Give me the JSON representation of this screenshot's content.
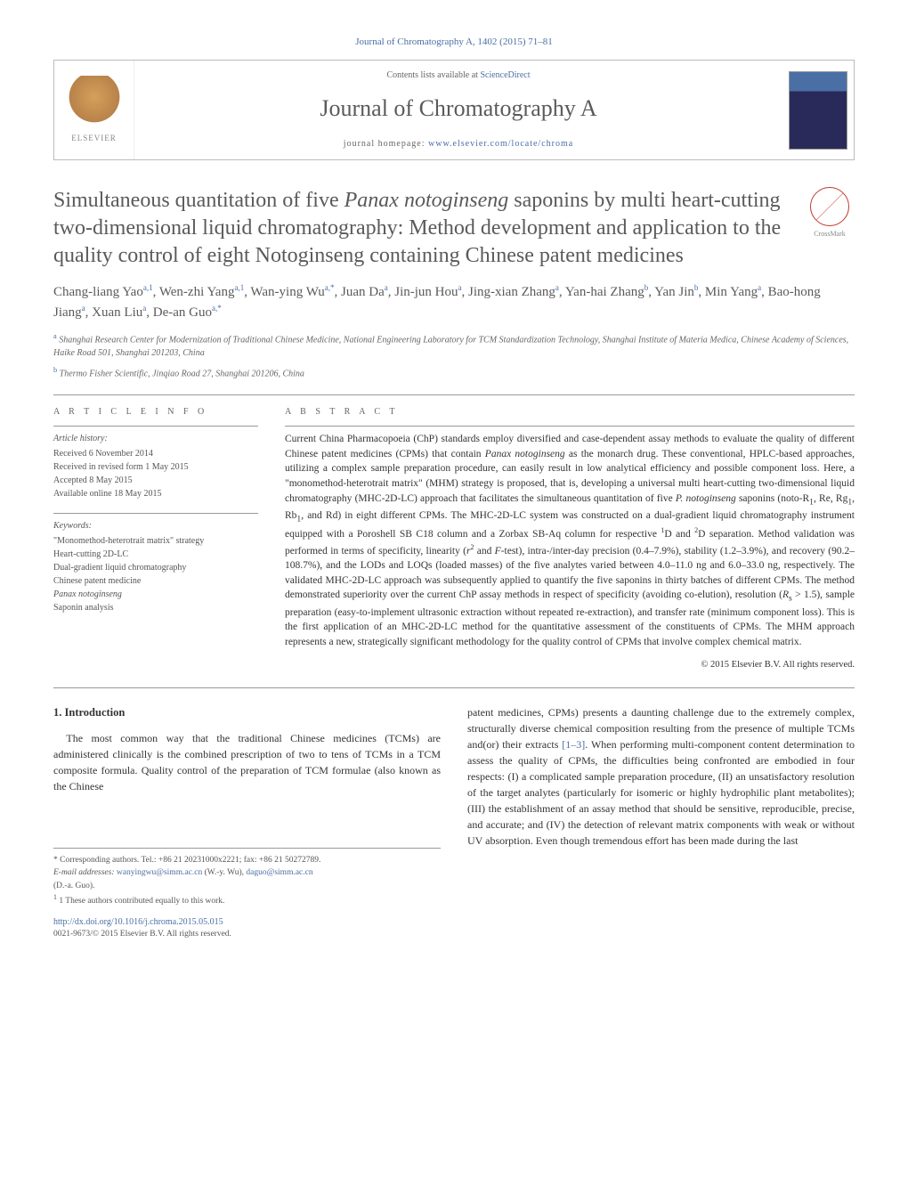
{
  "journal_ref": "Journal of Chromatography A, 1402 (2015) 71–81",
  "header": {
    "contents_prefix": "Contents lists available at ",
    "contents_link": "ScienceDirect",
    "journal_name": "Journal of Chromatography A",
    "homepage_prefix": "journal homepage: ",
    "homepage_link": "www.elsevier.com/locate/chroma",
    "publisher": "ELSEVIER"
  },
  "title_html": "Simultaneous quantitation of five <em>Panax notoginseng</em> saponins by multi heart-cutting two-dimensional liquid chromatography: Method development and application to the quality control of eight Notoginseng containing Chinese patent medicines",
  "crossmark": "CrossMark",
  "authors_html": "Chang-liang Yao<sup>a,1</sup>, Wen-zhi Yang<sup>a,1</sup>, Wan-ying Wu<sup>a,*</sup>, Juan Da<sup>a</sup>, Jin-jun Hou<sup>a</sup>, Jing-xian Zhang<sup>a</sup>, Yan-hai Zhang<sup>b</sup>, Yan Jin<sup>b</sup>, Min Yang<sup>a</sup>, Bao-hong Jiang<sup>a</sup>, Xuan Liu<sup>a</sup>, De-an Guo<sup>a,*</sup>",
  "affiliations": [
    {
      "marker": "a",
      "text": "Shanghai Research Center for Modernization of Traditional Chinese Medicine, National Engineering Laboratory for TCM Standardization Technology, Shanghai Institute of Materia Medica, Chinese Academy of Sciences, Haike Road 501, Shanghai 201203, China"
    },
    {
      "marker": "b",
      "text": "Thermo Fisher Scientific, Jinqiao Road 27, Shanghai 201206, China"
    }
  ],
  "article_info": {
    "heading": "a r t i c l e   i n f o",
    "history_label": "Article history:",
    "history": [
      "Received 6 November 2014",
      "Received in revised form 1 May 2015",
      "Accepted 8 May 2015",
      "Available online 18 May 2015"
    ],
    "keywords_label": "Keywords:",
    "keywords": [
      "\"Monomethod-heterotrait matrix\" strategy",
      "Heart-cutting 2D-LC",
      "Dual-gradient liquid chromatography",
      "Chinese patent medicine",
      "Panax notoginseng",
      "Saponin analysis"
    ]
  },
  "abstract": {
    "heading": "a b s t r a c t",
    "text_html": "Current China Pharmacopoeia (ChP) standards employ diversified and case-dependent assay methods to evaluate the quality of different Chinese patent medicines (CPMs) that contain <em>Panax notoginseng</em> as the monarch drug. These conventional, HPLC-based approaches, utilizing a complex sample preparation procedure, can easily result in low analytical efficiency and possible component loss. Here, a \"monomethod-heterotrait matrix\" (MHM) strategy is proposed, that is, developing a universal multi heart-cutting two-dimensional liquid chromatography (MHC-2D-LC) approach that facilitates the simultaneous quantitation of five <em>P. notoginseng</em> saponins (noto-R<sub>1</sub>, Re, Rg<sub>1</sub>, Rb<sub>1</sub>, and Rd) in eight different CPMs. The MHC-2D-LC system was constructed on a dual-gradient liquid chromatography instrument equipped with a Poroshell SB C18 column and a Zorbax SB-Aq column for respective <sup>1</sup>D and <sup>2</sup>D separation. Method validation was performed in terms of specificity, linearity (<em>r</em><sup>2</sup> and <em>F</em>-test), intra-/inter-day precision (0.4–7.9%), stability (1.2–3.9%), and recovery (90.2–108.7%), and the LODs and LOQs (loaded masses) of the five analytes varied between 4.0–11.0 ng and 6.0–33.0 ng, respectively. The validated MHC-2D-LC approach was subsequently applied to quantify the five saponins in thirty batches of different CPMs. The method demonstrated superiority over the current ChP assay methods in respect of specificity (avoiding co-elution), resolution (<em>R</em><sub>s</sub> > 1.5), sample preparation (easy-to-implement ultrasonic extraction without repeated re-extraction), and transfer rate (minimum component loss). This is the first application of an MHC-2D-LC method for the quantitative assessment of the constituents of CPMs. The MHM approach represents a new, strategically significant methodology for the quality control of CPMs that involve complex chemical matrix.",
    "copyright": "© 2015 Elsevier B.V. All rights reserved."
  },
  "body": {
    "section1_head": "1.  Introduction",
    "col1_p1": "The most common way that the traditional Chinese medicines (TCMs) are administered clinically is the combined prescription of two to tens of TCMs in a TCM composite formula. Quality control of the preparation of TCM formulae (also known as the Chinese",
    "col2_p1_html": "patent medicines, CPMs) presents a daunting challenge due to the extremely complex, structurally diverse chemical composition resulting from the presence of multiple TCMs and(or) their extracts <span class=\"cite-link\">[1–3]</span>. When performing multi-component content determination to assess the quality of CPMs, the difficulties being confronted are embodied in four respects: (I) a complicated sample preparation procedure, (II) an unsatisfactory resolution of the target analytes (particularly for isomeric or highly hydrophilic plant metabolites); (III) the establishment of an assay method that should be sensitive, reproducible, precise, and accurate; and (IV) the detection of relevant matrix components with weak or without UV absorption. Even though tremendous effort has been made during the last"
  },
  "footnotes": {
    "corr": "* Corresponding authors. Tel.: +86 21 20231000x2221; fax: +86 21 50272789.",
    "email_label": "E-mail addresses:",
    "email1": "wanyingwu@simm.ac.cn",
    "email1_who": " (W.-y. Wu), ",
    "email2": "daguo@simm.ac.cn",
    "email2_who": "(D.-a. Guo).",
    "equal": "1 These authors contributed equally to this work."
  },
  "doi": {
    "url": "http://dx.doi.org/10.1016/j.chroma.2015.05.015",
    "issn": "0021-9673/© 2015 Elsevier B.V. All rights reserved."
  },
  "colors": {
    "link": "#4a6fa5",
    "heading_gray": "#5a5a5a",
    "border": "#999999",
    "text": "#333333"
  }
}
